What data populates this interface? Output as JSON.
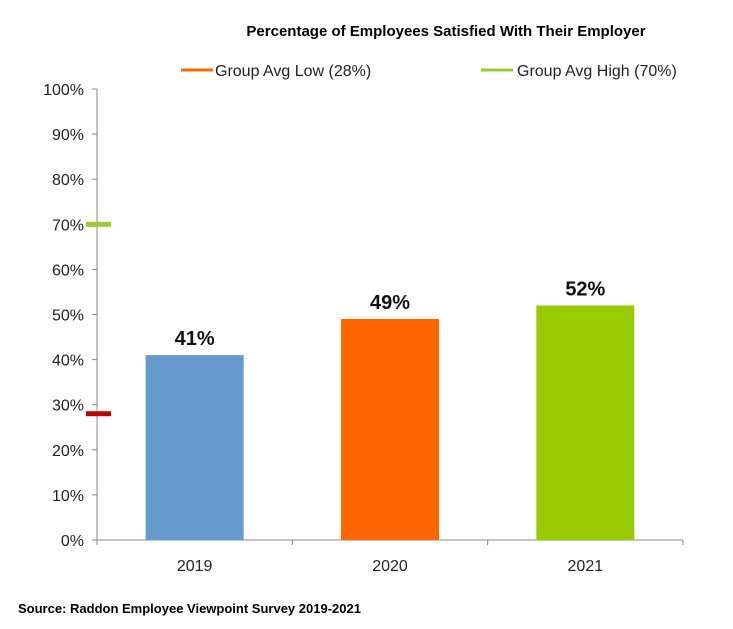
{
  "chart_data": {
    "type": "bar",
    "title": "Percentage of Employees Satisfied With Their Employer",
    "categories": [
      "2019",
      "2020",
      "2021"
    ],
    "values": [
      41,
      49,
      52
    ],
    "value_labels": [
      "41%",
      "49%",
      "52%"
    ],
    "bar_colors": [
      "#6699cc",
      "#ff6600",
      "#99cc00"
    ],
    "ylim": [
      0,
      100
    ],
    "yticks": [
      0,
      10,
      20,
      30,
      40,
      50,
      60,
      70,
      80,
      90,
      100
    ],
    "ytick_labels": [
      "0%",
      "10%",
      "20%",
      "30%",
      "40%",
      "50%",
      "60%",
      "70%",
      "80%",
      "90%",
      "100%"
    ],
    "xlabel": "",
    "ylabel": "",
    "grid": false,
    "legend_position": "top",
    "reference_markers": [
      {
        "name": "Group Avg Low (28%)",
        "value": 28,
        "color": "#c00000",
        "legend_color": "#ff6600"
      },
      {
        "name": "Group Avg High (70%)",
        "value": 70,
        "color": "#99cc33",
        "legend_color": "#99cc33"
      }
    ]
  },
  "source_text": "Source: Raddon Employee Viewpoint Survey 2019-2021"
}
